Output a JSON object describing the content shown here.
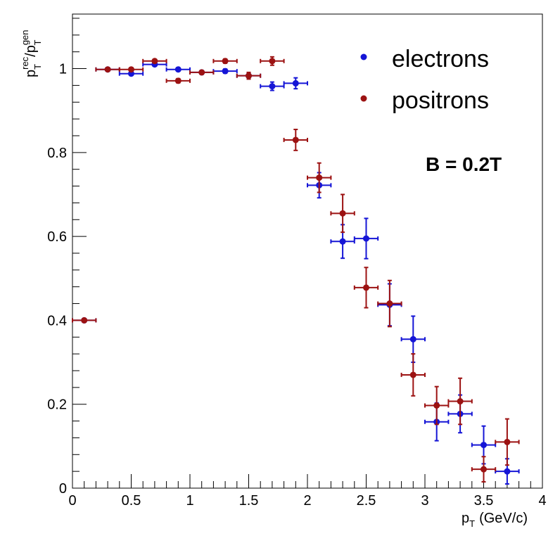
{
  "chart_data": {
    "type": "scatter",
    "xlabel_main": "p",
    "xlabel_sub": "T",
    "xlabel_unit": "(GeV/c)",
    "ylabel": {
      "p1": "p",
      "sup1": "rec",
      "sub1": "T",
      "slash": "/p",
      "sup2": "gen",
      "sub2": "T"
    },
    "xlim": [
      0,
      4
    ],
    "ylim": [
      0,
      1.13
    ],
    "x_ticks": [
      {
        "v": 0,
        "label": "0"
      },
      {
        "v": 0.5,
        "label": "0.5"
      },
      {
        "v": 1,
        "label": "1"
      },
      {
        "v": 1.5,
        "label": "1.5"
      },
      {
        "v": 2,
        "label": "2"
      },
      {
        "v": 2.5,
        "label": "2.5"
      },
      {
        "v": 3,
        "label": "3"
      },
      {
        "v": 3.5,
        "label": "3.5"
      },
      {
        "v": 4,
        "label": "4"
      }
    ],
    "y_ticks": [
      {
        "v": 0,
        "label": "0"
      },
      {
        "v": 0.2,
        "label": "0.2"
      },
      {
        "v": 0.4,
        "label": "0.4"
      },
      {
        "v": 0.6,
        "label": "0.6"
      },
      {
        "v": 0.8,
        "label": "0.8"
      },
      {
        "v": 1,
        "label": "1"
      }
    ],
    "grid": false,
    "legend_position": "top-right",
    "annotation": "B = 0.2T",
    "series": [
      {
        "name": "electrons",
        "color": "#1515d6",
        "points": [
          {
            "x": 0.1,
            "y": 0.4,
            "xerr": 0.1,
            "yerr": 0.0
          },
          {
            "x": 0.3,
            "y": 0.998,
            "xerr": 0.1,
            "yerr": 0.002
          },
          {
            "x": 0.5,
            "y": 0.988,
            "xerr": 0.1,
            "yerr": 0.004
          },
          {
            "x": 0.7,
            "y": 1.01,
            "xerr": 0.1,
            "yerr": 0.004
          },
          {
            "x": 0.9,
            "y": 0.998,
            "xerr": 0.1,
            "yerr": 0.004
          },
          {
            "x": 1.1,
            "y": 0.991,
            "xerr": 0.1,
            "yerr": 0.004
          },
          {
            "x": 1.3,
            "y": 0.994,
            "xerr": 0.1,
            "yerr": 0.005
          },
          {
            "x": 1.5,
            "y": 0.983,
            "xerr": 0.1,
            "yerr": 0.006
          },
          {
            "x": 1.7,
            "y": 0.958,
            "xerr": 0.1,
            "yerr": 0.01
          },
          {
            "x": 1.9,
            "y": 0.965,
            "xerr": 0.1,
            "yerr": 0.013
          },
          {
            "x": 2.1,
            "y": 0.722,
            "xerr": 0.1,
            "yerr": 0.03
          },
          {
            "x": 2.3,
            "y": 0.588,
            "xerr": 0.1,
            "yerr": 0.04
          },
          {
            "x": 2.5,
            "y": 0.595,
            "xerr": 0.1,
            "yerr": 0.048
          },
          {
            "x": 2.7,
            "y": 0.437,
            "xerr": 0.1,
            "yerr": 0.05
          },
          {
            "x": 2.9,
            "y": 0.355,
            "xerr": 0.1,
            "yerr": 0.055
          },
          {
            "x": 3.1,
            "y": 0.158,
            "xerr": 0.1,
            "yerr": 0.045
          },
          {
            "x": 3.3,
            "y": 0.177,
            "xerr": 0.1,
            "yerr": 0.045
          },
          {
            "x": 3.5,
            "y": 0.103,
            "xerr": 0.1,
            "yerr": 0.045
          },
          {
            "x": 3.7,
            "y": 0.04,
            "xerr": 0.1,
            "yerr": 0.03
          }
        ]
      },
      {
        "name": "positrons",
        "color": "#9c1212",
        "points": [
          {
            "x": 0.1,
            "y": 0.4,
            "xerr": 0.1,
            "yerr": 0.0
          },
          {
            "x": 0.3,
            "y": 0.998,
            "xerr": 0.1,
            "yerr": 0.002
          },
          {
            "x": 0.5,
            "y": 0.998,
            "xerr": 0.1,
            "yerr": 0.004
          },
          {
            "x": 0.7,
            "y": 1.018,
            "xerr": 0.1,
            "yerr": 0.004
          },
          {
            "x": 0.9,
            "y": 0.971,
            "xerr": 0.1,
            "yerr": 0.005
          },
          {
            "x": 1.1,
            "y": 0.991,
            "xerr": 0.1,
            "yerr": 0.004
          },
          {
            "x": 1.3,
            "y": 1.018,
            "xerr": 0.1,
            "yerr": 0.005
          },
          {
            "x": 1.5,
            "y": 0.983,
            "xerr": 0.1,
            "yerr": 0.008
          },
          {
            "x": 1.7,
            "y": 1.018,
            "xerr": 0.1,
            "yerr": 0.01
          },
          {
            "x": 1.9,
            "y": 0.83,
            "xerr": 0.1,
            "yerr": 0.025
          },
          {
            "x": 2.1,
            "y": 0.74,
            "xerr": 0.1,
            "yerr": 0.035
          },
          {
            "x": 2.3,
            "y": 0.655,
            "xerr": 0.1,
            "yerr": 0.045
          },
          {
            "x": 2.5,
            "y": 0.478,
            "xerr": 0.1,
            "yerr": 0.048
          },
          {
            "x": 2.7,
            "y": 0.44,
            "xerr": 0.1,
            "yerr": 0.055
          },
          {
            "x": 2.9,
            "y": 0.27,
            "xerr": 0.1,
            "yerr": 0.05
          },
          {
            "x": 3.1,
            "y": 0.197,
            "xerr": 0.1,
            "yerr": 0.045
          },
          {
            "x": 3.3,
            "y": 0.207,
            "xerr": 0.1,
            "yerr": 0.055
          },
          {
            "x": 3.5,
            "y": 0.045,
            "xerr": 0.1,
            "yerr": 0.03
          },
          {
            "x": 3.7,
            "y": 0.11,
            "xerr": 0.1,
            "yerr": 0.055
          }
        ]
      }
    ]
  }
}
